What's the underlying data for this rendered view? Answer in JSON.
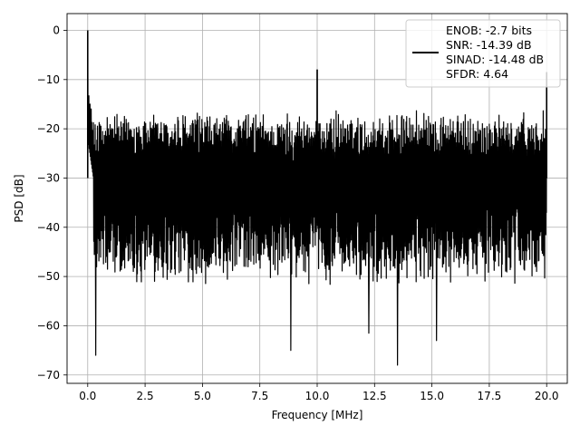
{
  "chart_data": {
    "type": "line",
    "title": "",
    "xlabel": "Frequency [MHz]",
    "ylabel": "PSD [dB]",
    "xlim": [
      -0.9,
      20.9
    ],
    "ylim": [
      -71.7,
      3.4
    ],
    "grid": true,
    "legend_position": "top-right",
    "x_ticks": [
      0.0,
      2.5,
      5.0,
      7.5,
      10.0,
      12.5,
      15.0,
      17.5,
      20.0
    ],
    "x_tick_labels": [
      "0.0",
      "2.5",
      "5.0",
      "7.5",
      "10.0",
      "12.5",
      "15.0",
      "17.5",
      "20.0"
    ],
    "y_ticks": [
      0,
      -10,
      -20,
      -30,
      -40,
      -50,
      -60,
      -70
    ],
    "y_tick_labels": [
      "0",
      "−10",
      "−20",
      "−30",
      "−40",
      "−50",
      "−60",
      "−70"
    ],
    "series": [
      {
        "color": "#000000",
        "x_range": [
          0.0,
          20.0
        ],
        "noise_floor_band": [
          -50,
          -20
        ],
        "peaks": [
          {
            "x": 0.0,
            "y": 0.0
          },
          {
            "x": 10.0,
            "y": -8.0
          },
          {
            "x": 20.0,
            "y": -8.5
          }
        ],
        "notable_dips": [
          {
            "x": 0.35,
            "y": -66.0
          },
          {
            "x": 8.85,
            "y": -65.0
          },
          {
            "x": 12.25,
            "y": -61.5
          },
          {
            "x": 13.5,
            "y": -68.0
          },
          {
            "x": 15.2,
            "y": -63.0
          }
        ]
      }
    ],
    "legend": {
      "lines": [
        "ENOB: -2.7 bits",
        "SNR: -14.39 dB",
        "SINAD: -14.48 dB",
        "SFDR: 4.64"
      ]
    }
  }
}
